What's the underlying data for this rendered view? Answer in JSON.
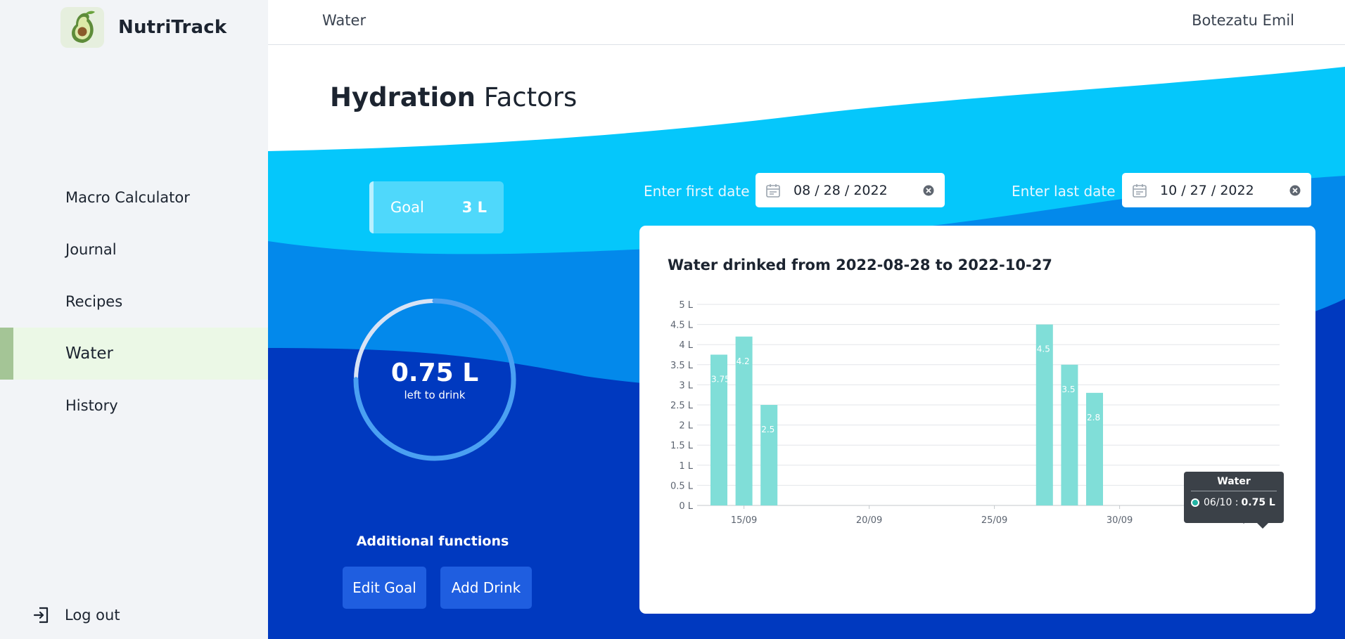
{
  "app": {
    "name": "NutriTrack"
  },
  "header": {
    "page": "Water",
    "user": "Botezatu Emil"
  },
  "sidebar": {
    "items": [
      {
        "label": "Macro Calculator",
        "active": false
      },
      {
        "label": "Journal",
        "active": false
      },
      {
        "label": "Recipes",
        "active": false
      },
      {
        "label": "Water",
        "active": true
      },
      {
        "label": "History",
        "active": false
      }
    ],
    "logout": "Log out"
  },
  "main": {
    "title_bold": "Hydration",
    "title_rest": "Factors",
    "goal": {
      "label": "Goal",
      "value": "3 L"
    },
    "ring": {
      "value": "0.75 L",
      "caption": "left to drink",
      "progress": 0.75
    },
    "additional": {
      "title": "Additional functions",
      "edit_goal": "Edit Goal",
      "add_drink": "Add Drink"
    },
    "first_date": {
      "label": "Enter first date",
      "value": "08 / 28 / 2022"
    },
    "last_date": {
      "label": "Enter last date",
      "value": "10 / 27 / 2022"
    }
  },
  "colors": {
    "wave_light": "#05c7fb",
    "wave_mid": "#0389eb",
    "wave_dark": "#0039bf",
    "bar": "#80ded8",
    "bar_highlight": "#bdeeea"
  },
  "chart_data": {
    "type": "bar",
    "title": "Water drinked from 2022-08-28 to 2022-10-27",
    "ylim": [
      0,
      5
    ],
    "y_ticks": [
      "0 L",
      "0.5 L",
      "1 L",
      "1.5 L",
      "2 L",
      "2.5 L",
      "3 L",
      "3.5 L",
      "4 L",
      "4.5 L",
      "5 L"
    ],
    "x_ticks": [
      "15/09",
      "20/09",
      "25/09",
      "30/09",
      "05/10"
    ],
    "series": [
      {
        "values": [
          {
            "date": "14/09",
            "value": 3.75,
            "label": "3.75 L"
          },
          {
            "date": "15/09",
            "value": 4.2,
            "label": "4.2 L"
          },
          {
            "date": "16/09",
            "value": 2.5,
            "label": "2.5 L"
          },
          {
            "date": "27/09",
            "value": 4.5,
            "label": "4.5 L"
          },
          {
            "date": "28/09",
            "value": 3.5,
            "label": "3.5 L"
          },
          {
            "date": "29/09",
            "value": 2.8,
            "label": "2.8 L"
          },
          {
            "date": "06/10",
            "value": 0.75,
            "label": "0.75 L"
          }
        ]
      }
    ],
    "grid": true,
    "tooltip": {
      "title": "Water",
      "date": "06/10 :",
      "value": "0.75 L"
    }
  }
}
